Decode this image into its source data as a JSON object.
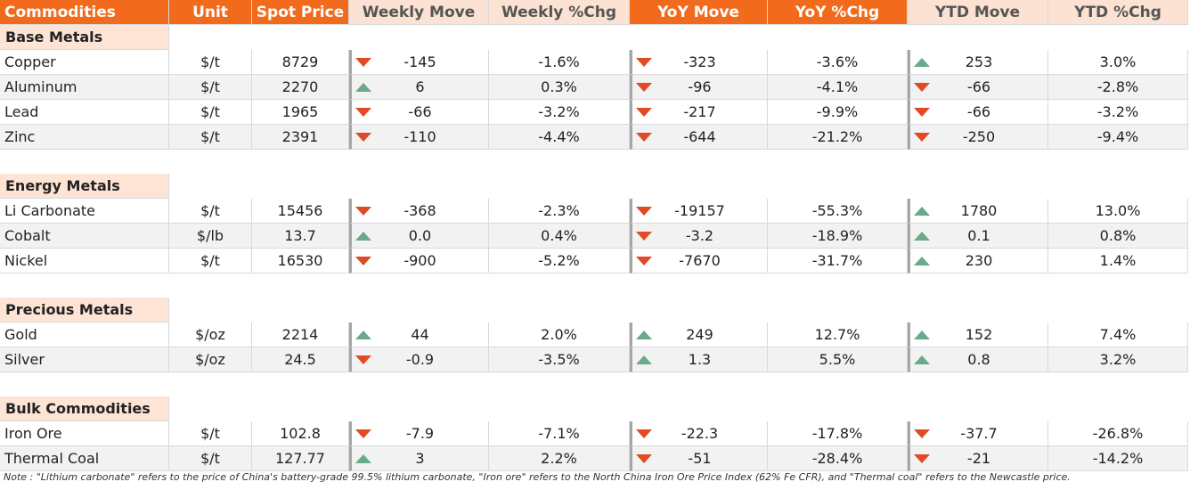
{
  "header": [
    "Commodities",
    "Unit",
    "Spot Price",
    "Weekly Move",
    "Weekly %Chg",
    "YoY Move",
    "YoY  %Chg",
    "YTD Move",
    "YTD %Chg"
  ],
  "sections": [
    {
      "title": "Base Metals",
      "rows": [
        [
          "Copper",
          "$/t",
          "8729",
          "-145",
          "-1.6%",
          "-323",
          "-3.6%",
          "253",
          "3.0%"
        ],
        [
          "Aluminum",
          "$/t",
          "2270",
          "6",
          "0.3%",
          "-96",
          "-4.1%",
          "-66",
          "-2.8%"
        ],
        [
          "Lead",
          "$/t",
          "1965",
          "-66",
          "-3.2%",
          "-217",
          "-9.9%",
          "-66",
          "-3.2%"
        ],
        [
          "Zinc",
          "$/t",
          "2391",
          "-110",
          "-4.4%",
          "-644",
          "-21.2%",
          "-250",
          "-9.4%"
        ]
      ]
    },
    {
      "title": "Energy Metals",
      "rows": [
        [
          "Li Carbonate",
          "$/t",
          "15456",
          "-368",
          "-2.3%",
          "-19157",
          "-55.3%",
          "1780",
          "13.0%"
        ],
        [
          "Cobalt",
          "$/lb",
          "13.7",
          "0.0",
          "0.4%",
          "-3.2",
          "-18.9%",
          "0.1",
          "0.8%"
        ],
        [
          "Nickel",
          "$/t",
          "16530",
          "-900",
          "-5.2%",
          "-7670",
          "-31.7%",
          "230",
          "1.4%"
        ]
      ]
    },
    {
      "title": "Precious Metals",
      "rows": [
        [
          "Gold",
          "$/oz",
          "2214",
          "44",
          "2.0%",
          "249",
          "12.7%",
          "152",
          "7.4%"
        ],
        [
          "Silver",
          "$/oz",
          "24.5",
          "-0.9",
          "-3.5%",
          "1.3",
          "5.5%",
          "0.8",
          "3.2%"
        ]
      ]
    },
    {
      "title": "Bulk Commodities",
      "rows": [
        [
          "Iron Ore",
          "$/t",
          "102.8",
          "-7.9",
          "-7.1%",
          "-22.3",
          "-17.8%",
          "-37.7",
          "-26.8%"
        ],
        [
          "Thermal Coal",
          "$/t",
          "127.77",
          "3",
          "2.2%",
          "-51",
          "-28.4%",
          "-21",
          "-14.2%"
        ]
      ]
    }
  ],
  "note": "Note :  \"Lithium carbonate\" refers to the price of China's battery-grade 99.5% lithium carbonate, \"Iron ore\" refers to the North China Iron Ore Price Index (62% Fe CFR), and \"Thermal coal\" refers to the Newcastle price."
}
